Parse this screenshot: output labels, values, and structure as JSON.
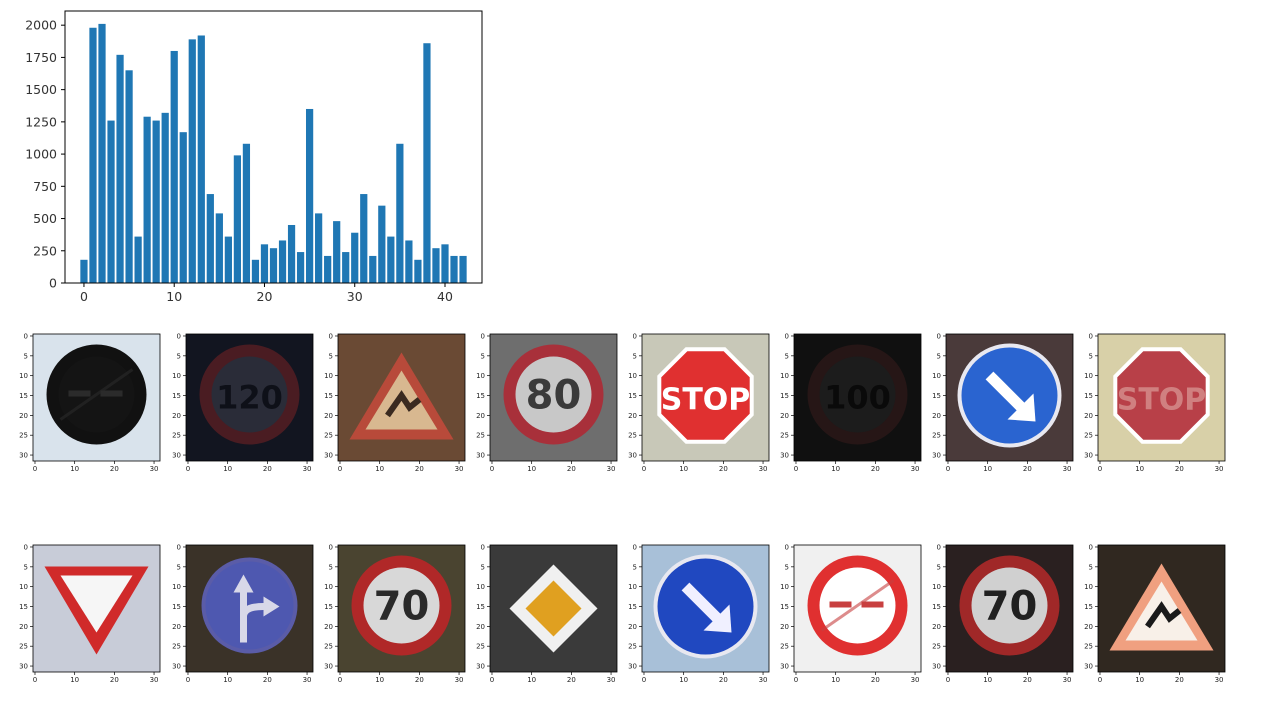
{
  "chart_data": {
    "type": "bar",
    "title": "",
    "xlabel": "",
    "ylabel": "",
    "bar_color": "#1f77b4",
    "x": [
      0,
      1,
      2,
      3,
      4,
      5,
      6,
      7,
      8,
      9,
      10,
      11,
      12,
      13,
      14,
      15,
      16,
      17,
      18,
      19,
      20,
      21,
      22,
      23,
      24,
      25,
      26,
      27,
      28,
      29,
      30,
      31,
      32,
      33,
      34,
      35,
      36,
      37,
      38,
      39,
      40,
      41,
      42
    ],
    "values": [
      180,
      1980,
      2010,
      1260,
      1770,
      1650,
      360,
      1290,
      1260,
      1320,
      1800,
      1170,
      1890,
      1920,
      690,
      540,
      360,
      990,
      1080,
      180,
      300,
      270,
      330,
      450,
      240,
      1350,
      540,
      210,
      480,
      240,
      390,
      690,
      210,
      600,
      360,
      1080,
      330,
      180,
      1860,
      270,
      300,
      210,
      210
    ],
    "xlim": [
      -2.1,
      44.1
    ],
    "ylim": [
      0,
      2110
    ],
    "xticks": [
      0,
      10,
      20,
      30,
      40
    ],
    "yticks": [
      0,
      250,
      500,
      750,
      1000,
      1250,
      1500,
      1750,
      2000
    ],
    "grid": false
  },
  "image_grid": {
    "axis_ticks_x": [
      "0",
      "10",
      "20",
      "30"
    ],
    "axis_ticks_y": [
      "0",
      "5",
      "10",
      "15",
      "20",
      "25",
      "30"
    ],
    "signs": [
      {
        "type": "end-of-no-passing",
        "bg": "#d9e3ec",
        "ring": "#111111",
        "inner": "#141414",
        "mark": "#2b2b2b"
      },
      {
        "type": "speed-limit",
        "label": "120",
        "bg": "#121520",
        "ring": "#4a1c22",
        "inner": "#2a2c38",
        "text_color": "#0e1018"
      },
      {
        "type": "warning-triangle",
        "bg": "#6a4a34",
        "ring": "#b84a3a",
        "inner": "#d8b890",
        "mark": "#3a2a20"
      },
      {
        "type": "speed-limit",
        "label": "80",
        "bg": "#6e6e6e",
        "ring": "#a8303a",
        "inner": "#c8c8c8",
        "text_color": "#3a3a3a"
      },
      {
        "type": "stop",
        "label": "STOP",
        "bg": "#c8c8b8",
        "ring": "#e03030",
        "inner": "#e03030",
        "text_color": "#ffffff"
      },
      {
        "type": "speed-limit",
        "label": "100",
        "bg": "#101010",
        "ring": "#261616",
        "inner": "#1c1c1c",
        "text_color": "#0a0a0a"
      },
      {
        "type": "keep-right",
        "bg": "#4a3a3a",
        "ring": "#1e5ac8",
        "inner": "#2a64d0",
        "mark": "#ffffff"
      },
      {
        "type": "stop",
        "label": "STOP",
        "bg": "#d8d0a8",
        "ring": "#b84048",
        "inner": "#b84048",
        "text_color": "#d08080"
      },
      {
        "type": "yield",
        "bg": "#c8ccd8",
        "ring": "#d02a2a",
        "inner": "#f6f6f6",
        "mark": ""
      },
      {
        "type": "go-straight-or-right",
        "bg": "#3a3228",
        "ring": "#5a5ca8",
        "inner": "#4e58b0",
        "mark": "#d8d8e8"
      },
      {
        "type": "speed-limit",
        "label": "70",
        "bg": "#4a4430",
        "ring": "#b02828",
        "inner": "#d8d8d8",
        "text_color": "#2a2a2a"
      },
      {
        "type": "priority-road",
        "bg": "#3a3a3a",
        "ring": "#f0f0f0",
        "inner": "#e0a020",
        "mark": ""
      },
      {
        "type": "keep-right",
        "bg": "#a8c0d8",
        "ring": "#1e40b0",
        "inner": "#2048c0",
        "mark": "#f0f0ff"
      },
      {
        "type": "end-of-no-passing",
        "bg": "#f0f0f0",
        "ring": "#e03030",
        "inner": "#ffffff",
        "mark": "#c84040"
      },
      {
        "type": "speed-limit",
        "label": "70",
        "bg": "#2a2020",
        "ring": "#a02828",
        "inner": "#d0d0d0",
        "text_color": "#202020"
      },
      {
        "type": "warning-triangle",
        "bg": "#302820",
        "ring": "#f0a080",
        "inner": "#f8f0e8",
        "mark": "#1a1a1a"
      }
    ]
  }
}
